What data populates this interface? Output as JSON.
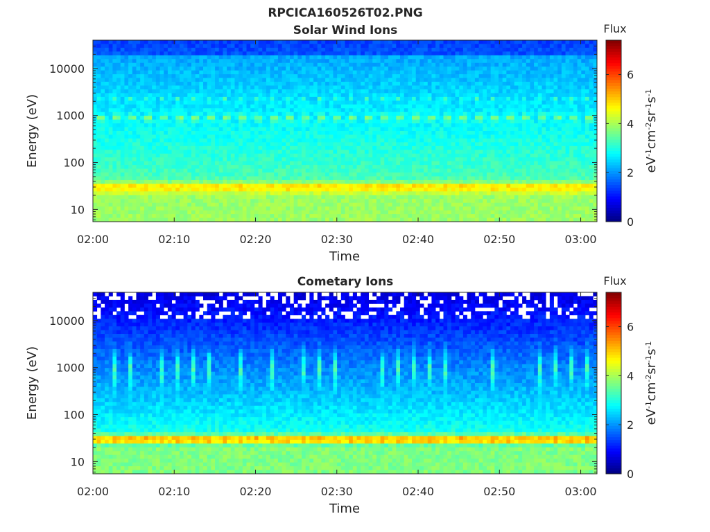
{
  "figure": {
    "title": "RPCICA160526T02.PNG"
  },
  "colorbar": {
    "title": "Flux",
    "label_base": "eV",
    "label_parts": [
      {
        "t": "eV",
        "sup": false
      },
      {
        "t": "-1",
        "sup": true
      },
      {
        "t": "cm",
        "sup": false
      },
      {
        "t": "-2",
        "sup": true
      },
      {
        "t": "sr",
        "sup": false
      },
      {
        "t": "-1",
        "sup": true
      },
      {
        "t": "s",
        "sup": false
      },
      {
        "t": "-1",
        "sup": true
      }
    ],
    "ticks": [
      "0",
      "2",
      "4",
      "6"
    ],
    "range": [
      0,
      7.4
    ]
  },
  "chart_data": [
    {
      "type": "heatmap",
      "title": "Solar Wind Ions",
      "xlabel": "Time",
      "ylabel": "Energy (eV)",
      "x_ticks": [
        "02:00",
        "02:10",
        "02:20",
        "02:30",
        "02:40",
        "02:50",
        "03:00"
      ],
      "xlim_minutes": [
        0,
        62
      ],
      "y_scale": "log",
      "y_ticks": [
        "10",
        "100",
        "1000",
        "10000"
      ],
      "ylim": [
        5.5,
        40000
      ],
      "zlim": [
        0,
        7.4
      ],
      "colormap": "jet",
      "features": [
        {
          "energy_eV": 30,
          "flux": 5.2,
          "description": "band"
        },
        {
          "energy_eV": 900,
          "flux": 3.8,
          "description": "band"
        }
      ]
    },
    {
      "type": "heatmap",
      "title": "Cometary Ions",
      "xlabel": "Time",
      "ylabel": "Energy (eV)",
      "x_ticks": [
        "02:00",
        "02:10",
        "02:20",
        "02:30",
        "02:40",
        "02:50",
        "03:00"
      ],
      "xlim_minutes": [
        0,
        62
      ],
      "y_scale": "log",
      "y_ticks": [
        "10",
        "100",
        "1000",
        "10000"
      ],
      "ylim": [
        5.5,
        40000
      ],
      "zlim": [
        0,
        7.4
      ],
      "colormap": "jet",
      "features": [
        {
          "energy_eV": 30,
          "flux": 6.0,
          "description": "band"
        },
        {
          "energy_eV": 1000,
          "flux": 2.6,
          "description": "spikes"
        }
      ]
    }
  ]
}
